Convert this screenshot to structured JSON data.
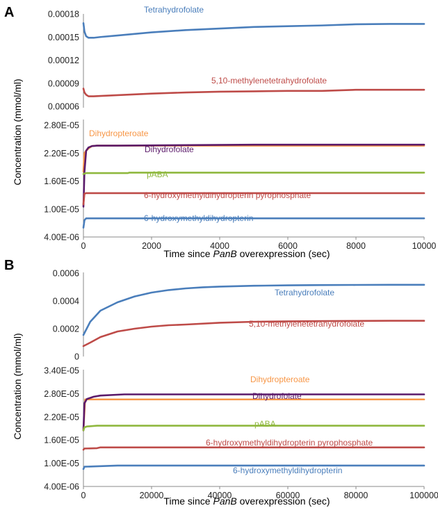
{
  "panels": [
    {
      "letter": "A",
      "ylabel": "Concentration (mmol/ml)",
      "xlabel_parts": [
        "Time since ",
        "PanB",
        " overexpression (sec)"
      ],
      "xlim": [
        0,
        10000
      ],
      "x_ticks": [
        "0",
        "2000",
        "4000",
        "6000",
        "8000",
        "10000"
      ],
      "x_tick_values": [
        0,
        2000,
        4000,
        6000,
        8000,
        10000
      ],
      "upper": {
        "ylim": [
          6e-05,
          0.00018
        ],
        "y_tick_values": [
          6e-05,
          9e-05,
          0.00012,
          0.00015,
          0.00018
        ],
        "y_ticks": [
          "0.00006",
          "0.00009",
          "0.00012",
          "0.00015",
          "0.00018"
        ]
      },
      "lower": {
        "ylim": [
          4e-06,
          2.8e-05
        ],
        "y_tick_values": [
          4e-06,
          1e-05,
          1.6e-05,
          2.2e-05,
          2.8e-05
        ],
        "y_ticks": [
          "4.00E-06",
          "1.00E-05",
          "1.60E-05",
          "2.20E-05",
          "2.80E-05"
        ]
      }
    },
    {
      "letter": "B",
      "ylabel": "Concentration (mmol/ml)",
      "xlabel_parts": [
        "Time since ",
        "PanB",
        " overexpression (sec)"
      ],
      "xlim": [
        0,
        100000
      ],
      "x_ticks": [
        "0",
        "20000",
        "40000",
        "60000",
        "80000",
        "100000"
      ],
      "x_tick_values": [
        0,
        20000,
        40000,
        60000,
        80000,
        100000
      ],
      "upper": {
        "ylim": [
          0,
          0.0006
        ],
        "y_tick_values": [
          0,
          0.0002,
          0.0004,
          0.0006
        ],
        "y_ticks": [
          "0",
          "0.0002",
          "0.0004",
          "0.0006"
        ]
      },
      "lower": {
        "ylim": [
          4e-06,
          3.4e-05
        ],
        "y_tick_values": [
          4e-06,
          1e-05,
          1.6e-05,
          2.2e-05,
          2.8e-05,
          3.4e-05
        ],
        "y_ticks": [
          "4.00E-06",
          "1.00E-05",
          "1.60E-05",
          "2.20E-05",
          "2.80E-05",
          "3.40E-05"
        ]
      }
    }
  ],
  "chart_data": [
    {
      "type": "line",
      "panel": "A",
      "subplot": "upper",
      "xlabel": "Time since PanB overexpression (sec)",
      "ylabel": "Concentration (mmol/ml)",
      "xlim": [
        0,
        10000
      ],
      "ylim": [
        6e-05,
        0.00018
      ],
      "grid": false,
      "series": [
        {
          "name": "Tetrahydrofolate",
          "color": "#4a7ebb",
          "x": [
            0,
            30,
            80,
            150,
            300,
            500,
            1000,
            2000,
            3000,
            4000,
            5000,
            6000,
            7000,
            8000,
            9000,
            10000
          ],
          "y": [
            0.000168,
            0.000157,
            0.000151,
            0.000149,
            0.000149,
            0.00015,
            0.000152,
            0.000156,
            0.000159,
            0.000161,
            0.000163,
            0.000164,
            0.000165,
            0.0001665,
            0.000167,
            0.000167
          ]
        },
        {
          "name": "5,10-methylenetetrahydrofolate",
          "color": "#be4b48",
          "x": [
            0,
            30,
            80,
            150,
            300,
            500,
            1000,
            2000,
            3000,
            4000,
            5000,
            6000,
            7000,
            8000,
            9000,
            10000
          ],
          "y": [
            8.3e-05,
            7.8e-05,
            7.5e-05,
            7.3e-05,
            7.3e-05,
            7.35e-05,
            7.45e-05,
            7.65e-05,
            7.8e-05,
            7.9e-05,
            7.95e-05,
            8e-05,
            8e-05,
            8.15e-05,
            8.15e-05,
            8.15e-05
          ]
        }
      ]
    },
    {
      "type": "line",
      "panel": "A",
      "subplot": "lower",
      "xlabel": "Time since PanB overexpression (sec)",
      "ylabel": "Concentration (mmol/ml)",
      "xlim": [
        0,
        10000
      ],
      "ylim": [
        4e-06,
        2.8e-05
      ],
      "grid": false,
      "series": [
        {
          "name": "Dihydropteroate",
          "color": "#f79646",
          "x": [
            0,
            30,
            80,
            150,
            250,
            400,
            10000
          ],
          "y": [
            1.8e-05,
            2.2e-05,
            2.25e-05,
            2.3e-05,
            2.35e-05,
            2.36e-05,
            2.36e-05
          ]
        },
        {
          "name": "Dihydrofolate",
          "color": "#5b1a6a",
          "x": [
            0,
            30,
            80,
            150,
            250,
            400,
            1000,
            5000,
            10000
          ],
          "y": [
            1.05e-05,
            1.8e-05,
            2.25e-05,
            2.32e-05,
            2.35e-05,
            2.36e-05,
            2.36e-05,
            2.38e-05,
            2.38e-05
          ]
        },
        {
          "name": "pABA",
          "color": "#8fb83e",
          "x": [
            0,
            30,
            80,
            150,
            1300,
            1350,
            10000
          ],
          "y": [
            1.75e-05,
            1.76e-05,
            1.77e-05,
            1.77e-05,
            1.77e-05,
            1.78e-05,
            1.78e-05
          ]
        },
        {
          "name": "6-hydroxymethyldihydropterin pyrophosphate",
          "color": "#be4b48",
          "x": [
            0,
            30,
            80,
            10000
          ],
          "y": [
            1.1e-05,
            1.33e-05,
            1.34e-05,
            1.34e-05
          ]
        },
        {
          "name": "6-hydroxymethyldihydropterin",
          "color": "#4a7ebb",
          "x": [
            0,
            30,
            80,
            10000
          ],
          "y": [
            6e-06,
            7.6e-06,
            8e-06,
            8e-06
          ]
        }
      ]
    },
    {
      "type": "line",
      "panel": "B",
      "subplot": "upper",
      "xlabel": "Time since PanB overexpression (sec)",
      "ylabel": "Concentration (mmol/ml)",
      "xlim": [
        0,
        100000
      ],
      "ylim": [
        0,
        0.0006
      ],
      "grid": false,
      "series": [
        {
          "name": "Tetrahydrofolate",
          "color": "#4a7ebb",
          "x": [
            0,
            2000,
            5000,
            10000,
            15000,
            20000,
            25000,
            30000,
            35000,
            40000,
            50000,
            60000,
            70000,
            80000,
            90000,
            100000
          ],
          "y": [
            0.000155,
            0.00025,
            0.00033,
            0.00039,
            0.000432,
            0.00046,
            0.000478,
            0.00049,
            0.000498,
            0.000503,
            0.000509,
            0.000512,
            0.000514,
            0.000515,
            0.000516,
            0.000516
          ]
        },
        {
          "name": "5,10-methylenetetrahydrofolate",
          "color": "#be4b48",
          "x": [
            0,
            2000,
            5000,
            10000,
            15000,
            20000,
            25000,
            30000,
            40000,
            50000,
            60000,
            70000,
            80000,
            90000,
            100000
          ],
          "y": [
            7.5e-05,
            0.0001,
            0.00014,
            0.00018,
            0.0002,
            0.000215,
            0.000225,
            0.00023,
            0.000243,
            0.00025,
            0.000253,
            0.000255,
            0.000256,
            0.000257,
            0.000257
          ]
        }
      ]
    },
    {
      "type": "line",
      "panel": "B",
      "subplot": "lower",
      "xlabel": "Time since PanB overexpression (sec)",
      "ylabel": "Concentration (mmol/ml)",
      "xlim": [
        0,
        100000
      ],
      "ylim": [
        4e-06,
        3.4e-05
      ],
      "grid": false,
      "series": [
        {
          "name": "Dihydropteroate",
          "color": "#f79646",
          "x": [
            0,
            500,
            100000
          ],
          "y": [
            1.85e-05,
            2.65e-05,
            2.65e-05
          ]
        },
        {
          "name": "Dihydrofolate",
          "color": "#5b1a6a",
          "x": [
            0,
            300,
            1000,
            3000,
            5000,
            12000,
            20000,
            100000
          ],
          "y": [
            1.85e-05,
            2.55e-05,
            2.66e-05,
            2.72e-05,
            2.75e-05,
            2.78e-05,
            2.78e-05,
            2.78e-05
          ]
        },
        {
          "name": "pABA",
          "color": "#8fb83e",
          "x": [
            0,
            300,
            1000,
            4000,
            100000
          ],
          "y": [
            1.85e-05,
            1.93e-05,
            1.95e-05,
            1.97e-05,
            1.97e-05
          ]
        },
        {
          "name": "6-hydroxymethyldihydropterin pyrophosphate",
          "color": "#be4b48",
          "x": [
            0,
            300,
            4000,
            5000,
            100000
          ],
          "y": [
            1.35e-05,
            1.38e-05,
            1.39e-05,
            1.41e-05,
            1.41e-05
          ]
        },
        {
          "name": "6-hydroxymethyldihydropterin",
          "color": "#4a7ebb",
          "x": [
            0,
            300,
            10000,
            100000
          ],
          "y": [
            8.5e-06,
            9.1e-06,
            9.4e-06,
            9.4e-06
          ]
        }
      ]
    }
  ]
}
